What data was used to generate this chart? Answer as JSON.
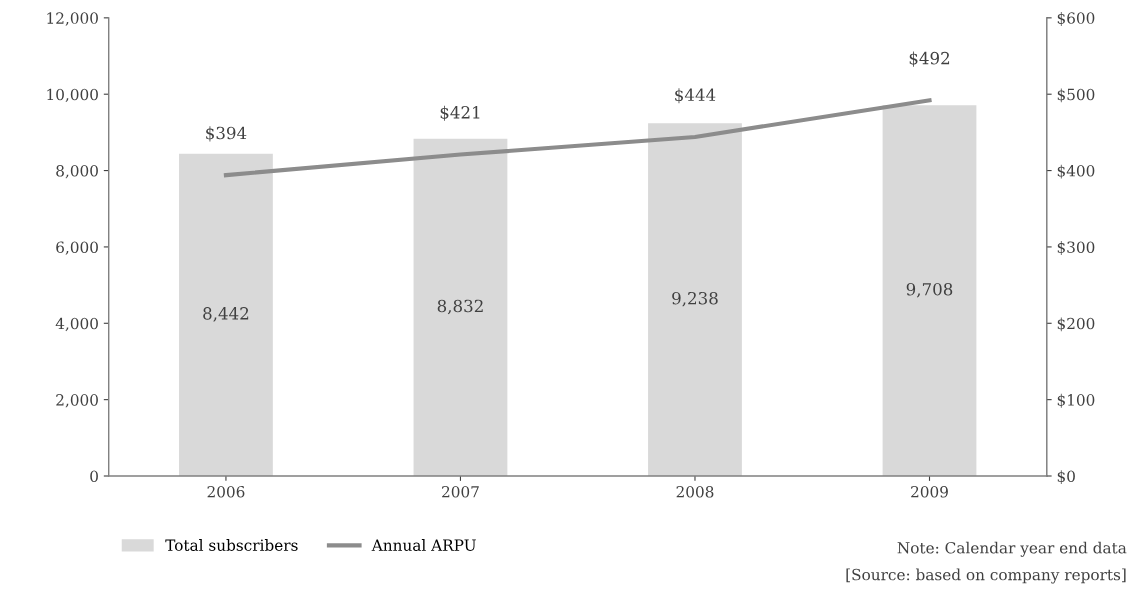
{
  "chart_data": {
    "type": "bar",
    "categories": [
      "2006",
      "2007",
      "2008",
      "2009"
    ],
    "series": [
      {
        "name": "Total subscribers",
        "color": "#d9d9d9",
        "values": [
          8442,
          8832,
          9238,
          9708
        ],
        "value_labels": [
          "8,442",
          "8,832",
          "9,238",
          "9,708"
        ]
      },
      {
        "name": "Annual ARPU",
        "type": "line",
        "axis": "y2",
        "color": "#8c8c8c",
        "values": [
          394,
          421,
          444,
          492
        ],
        "value_labels": [
          "$394",
          "$421",
          "$444",
          "$492"
        ]
      }
    ],
    "ylim": [
      0,
      12000
    ],
    "yticks": [
      {
        "value": 0,
        "label": "0"
      },
      {
        "value": 2000,
        "label": "2,000"
      },
      {
        "value": 4000,
        "label": "4,000"
      },
      {
        "value": 6000,
        "label": "6,000"
      },
      {
        "value": 8000,
        "label": "8,000"
      },
      {
        "value": 10000,
        "label": "10,000"
      },
      {
        "value": 12000,
        "label": "12,000"
      }
    ],
    "y2lim": [
      0,
      600
    ],
    "y2ticks": [
      {
        "value": 0,
        "label": "$0"
      },
      {
        "value": 100,
        "label": "$100"
      },
      {
        "value": 200,
        "label": "$200"
      },
      {
        "value": 300,
        "label": "$300"
      },
      {
        "value": 400,
        "label": "$400"
      },
      {
        "value": 500,
        "label": "$500"
      },
      {
        "value": 600,
        "label": "$600"
      }
    ],
    "legend": "bottom",
    "grid": false,
    "annotations": [
      "Note: Calendar year end data",
      "[Source: based on company reports]"
    ]
  }
}
